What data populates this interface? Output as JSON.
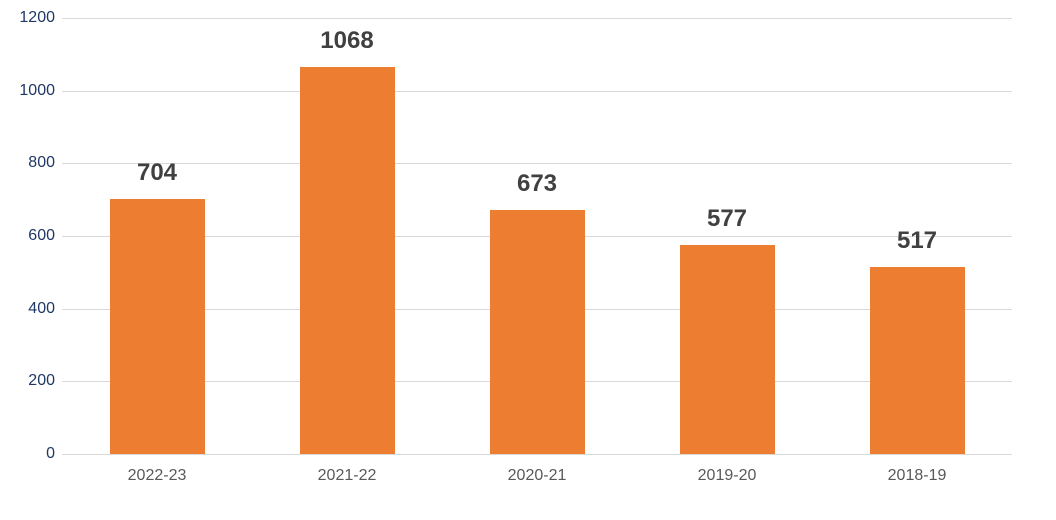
{
  "chart_data": {
    "type": "bar",
    "title": "",
    "xlabel": "",
    "ylabel": "",
    "categories": [
      "2022-23",
      "2021-22",
      "2020-21",
      "2019-20",
      "2018-19"
    ],
    "values": [
      704,
      1068,
      673,
      577,
      517
    ],
    "data_labels": [
      "704",
      "1068",
      "673",
      "577",
      "517"
    ],
    "ylim": [
      0,
      1200
    ],
    "yticks": [
      0,
      200,
      400,
      600,
      800,
      1000,
      1200
    ],
    "ytick_labels": [
      "0",
      "200",
      "400",
      "600",
      "800",
      "1000",
      "1200"
    ],
    "grid": true,
    "legend": false,
    "colors": {
      "bar": "#ED7D31",
      "data_label": "#404040",
      "y_tick_label": "#1F3864",
      "x_tick_label": "#595959",
      "gridline": "#D9D9D9",
      "axis_line": "#D9D9D9",
      "background": "#FFFFFF"
    }
  }
}
